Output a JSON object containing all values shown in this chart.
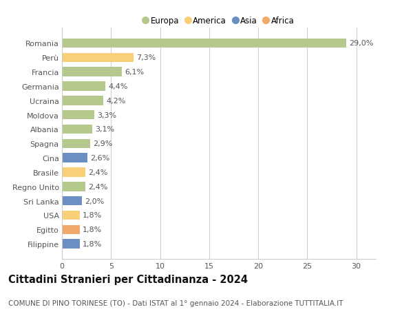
{
  "categories": [
    "Filippine",
    "Egitto",
    "USA",
    "Sri Lanka",
    "Regno Unito",
    "Brasile",
    "Cina",
    "Spagna",
    "Albania",
    "Moldova",
    "Ucraina",
    "Germania",
    "Francia",
    "Perù",
    "Romania"
  ],
  "values": [
    1.8,
    1.8,
    1.8,
    2.0,
    2.4,
    2.4,
    2.6,
    2.9,
    3.1,
    3.3,
    4.2,
    4.4,
    6.1,
    7.3,
    29.0
  ],
  "labels": [
    "1,8%",
    "1,8%",
    "1,8%",
    "2,0%",
    "2,4%",
    "2,4%",
    "2,6%",
    "2,9%",
    "3,1%",
    "3,3%",
    "4,2%",
    "4,4%",
    "6,1%",
    "7,3%",
    "29,0%"
  ],
  "continents": [
    "Asia",
    "Africa",
    "America",
    "Asia",
    "Europa",
    "America",
    "Asia",
    "Europa",
    "Europa",
    "Europa",
    "Europa",
    "Europa",
    "Europa",
    "America",
    "Europa"
  ],
  "continent_colors": {
    "Europa": "#b5c98e",
    "America": "#f9d07a",
    "Asia": "#6b8fc2",
    "Africa": "#f0a96b"
  },
  "legend_items": [
    {
      "label": "Europa",
      "color": "#b5c98e"
    },
    {
      "label": "America",
      "color": "#f9d07a"
    },
    {
      "label": "Asia",
      "color": "#6b8fc2"
    },
    {
      "label": "Africa",
      "color": "#f0a96b"
    }
  ],
  "title": "Cittadini Stranieri per Cittadinanza - 2024",
  "subtitle": "COMUNE DI PINO TORINESE (TO) - Dati ISTAT al 1° gennaio 2024 - Elaborazione TUTTITALIA.IT",
  "xlim": [
    0,
    32
  ],
  "xticks": [
    0,
    5,
    10,
    15,
    20,
    25,
    30
  ],
  "background_color": "#ffffff",
  "grid_color": "#cccccc",
  "bar_height": 0.65,
  "label_fontsize": 8.0,
  "title_fontsize": 10.5,
  "subtitle_fontsize": 7.5,
  "tick_fontsize": 8.0,
  "ytick_fontsize": 8.0
}
